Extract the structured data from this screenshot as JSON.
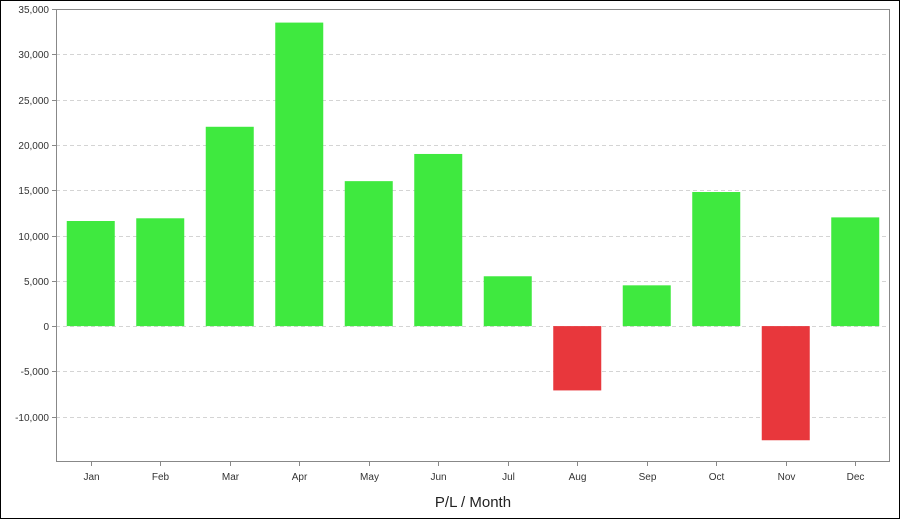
{
  "chart_data": {
    "type": "bar",
    "title": "",
    "xlabel": "P/L / Month",
    "ylabel": "",
    "categories": [
      "Jan",
      "Feb",
      "Mar",
      "Apr",
      "May",
      "Jun",
      "Jul",
      "Aug",
      "Sep",
      "Oct",
      "Nov",
      "Dec"
    ],
    "series": [
      {
        "values": [
          11600,
          11900,
          22000,
          33500,
          16000,
          19000,
          5500,
          -7100,
          4500,
          14800,
          -12600,
          12000
        ]
      }
    ],
    "ylim": [
      -15000,
      35000
    ],
    "yticks": [
      -10000,
      -5000,
      0,
      5000,
      10000,
      15000,
      20000,
      25000,
      30000,
      35000
    ],
    "ytick_labels": [
      "-10,000",
      "-5,000",
      "0",
      "5,000",
      "10,000",
      "15,000",
      "20,000",
      "25,000",
      "30,000",
      "35,000"
    ],
    "grid": true,
    "legend": "none",
    "colors": {
      "positive": "#3fe93f",
      "negative": "#e8373c",
      "grid": "#d4d4d4",
      "axis": "#888888"
    }
  }
}
